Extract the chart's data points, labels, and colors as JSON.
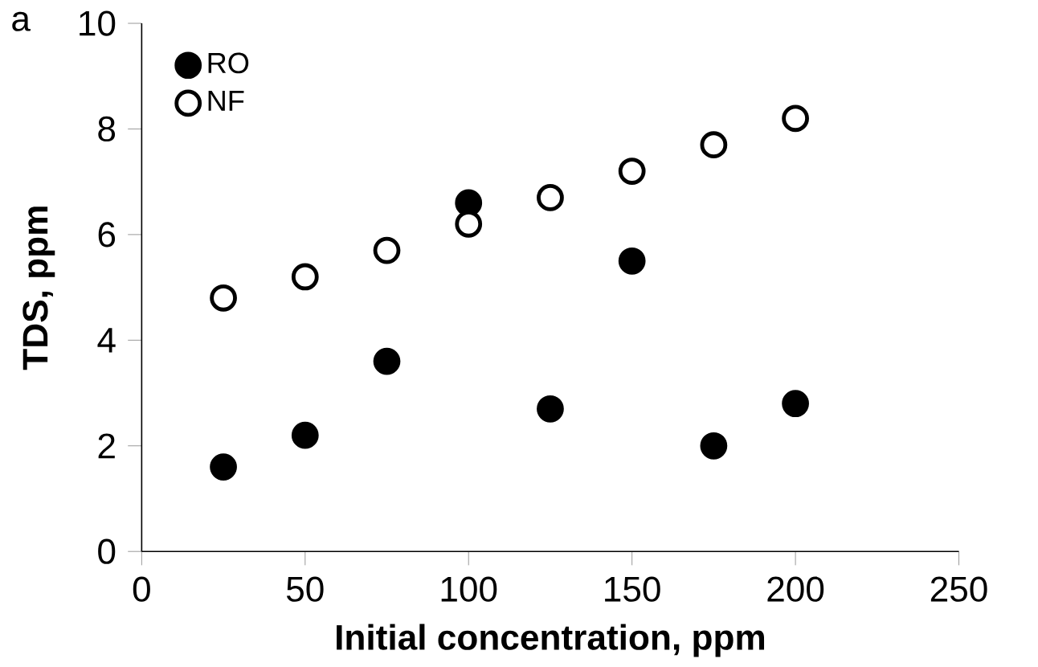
{
  "chart_data": {
    "type": "scatter",
    "xlabel": "Initial concentration, ppm",
    "ylabel": "TDS, ppm",
    "annotations": [
      "a"
    ],
    "x": [
      25,
      50,
      75,
      100,
      125,
      150,
      175,
      200
    ],
    "series": [
      {
        "name": "RO",
        "color": "#000000",
        "values": [
          1.6,
          2.2,
          3.6,
          6.6,
          2.7,
          5.5,
          2.0,
          2.8
        ]
      },
      {
        "name": "NF",
        "color": "#ffffff",
        "values": [
          4.8,
          5.2,
          5.7,
          6.2,
          6.7,
          7.2,
          7.7,
          8.2
        ]
      }
    ],
    "xlim": [
      0,
      250
    ],
    "xticks": [
      0,
      50,
      100,
      150,
      200,
      250
    ],
    "ylim": [
      0,
      10
    ],
    "yticks": [
      0,
      2,
      4,
      6,
      8,
      10
    ],
    "grid": false,
    "legend": "top left",
    "marker": "circle"
  }
}
